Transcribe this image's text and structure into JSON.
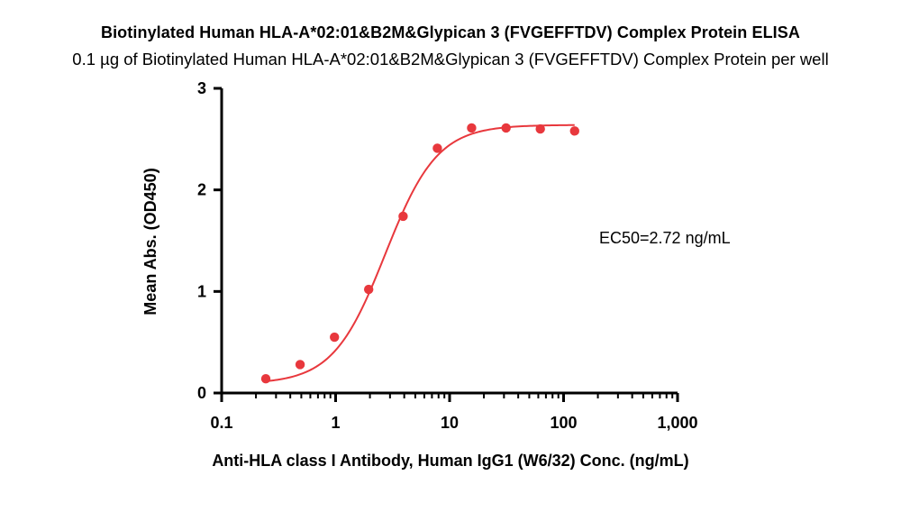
{
  "header": {
    "title": "Biotinylated Human HLA-A*02:01&B2M&Glypican 3 (FVGEFFTDV) Complex Protein ELISA",
    "subtitle": "0.1 µg of Biotinylated Human HLA-A*02:01&B2M&Glypican 3 (FVGEFFTDV) Complex Protein per well"
  },
  "chart_data": {
    "type": "scatter",
    "title": "Biotinylated Human HLA-A*02:01&B2M&Glypican 3 (FVGEFFTDV) Complex Protein ELISA",
    "subtitle": "0.1 µg of Biotinylated Human HLA-A*02:01&B2M&Glypican 3 (FVGEFFTDV) Complex Protein per well",
    "xlabel": "Anti-HLA class I Antibody, Human IgG1 (W6/32) Conc. (ng/mL)",
    "ylabel": "Mean Abs. (OD450)",
    "xscale": "log",
    "xlim": [
      0.1,
      1000
    ],
    "ylim": [
      0,
      3
    ],
    "xticks": [
      0.1,
      1,
      10,
      100,
      1000
    ],
    "xtick_labels": [
      "0.1",
      "1",
      "10",
      "100",
      "1,000"
    ],
    "yticks": [
      0,
      1,
      2,
      3
    ],
    "ytick_labels": [
      "0",
      "1",
      "2",
      "3"
    ],
    "grid": false,
    "series": [
      {
        "x": [
          0.244,
          0.488,
          0.977,
          1.95,
          3.91,
          7.81,
          15.6,
          31.3,
          62.5,
          125
        ],
        "y": [
          0.14,
          0.28,
          0.55,
          1.02,
          1.74,
          2.41,
          2.61,
          2.61,
          2.6,
          2.58
        ],
        "color": "#e8383d"
      }
    ],
    "fit": {
      "type": "4PL",
      "bottom": 0.09,
      "top": 2.64,
      "ec50": 2.72,
      "hill": 1.9,
      "color": "#e8383d"
    },
    "annotation": "EC50=2.72 ng/mL"
  }
}
